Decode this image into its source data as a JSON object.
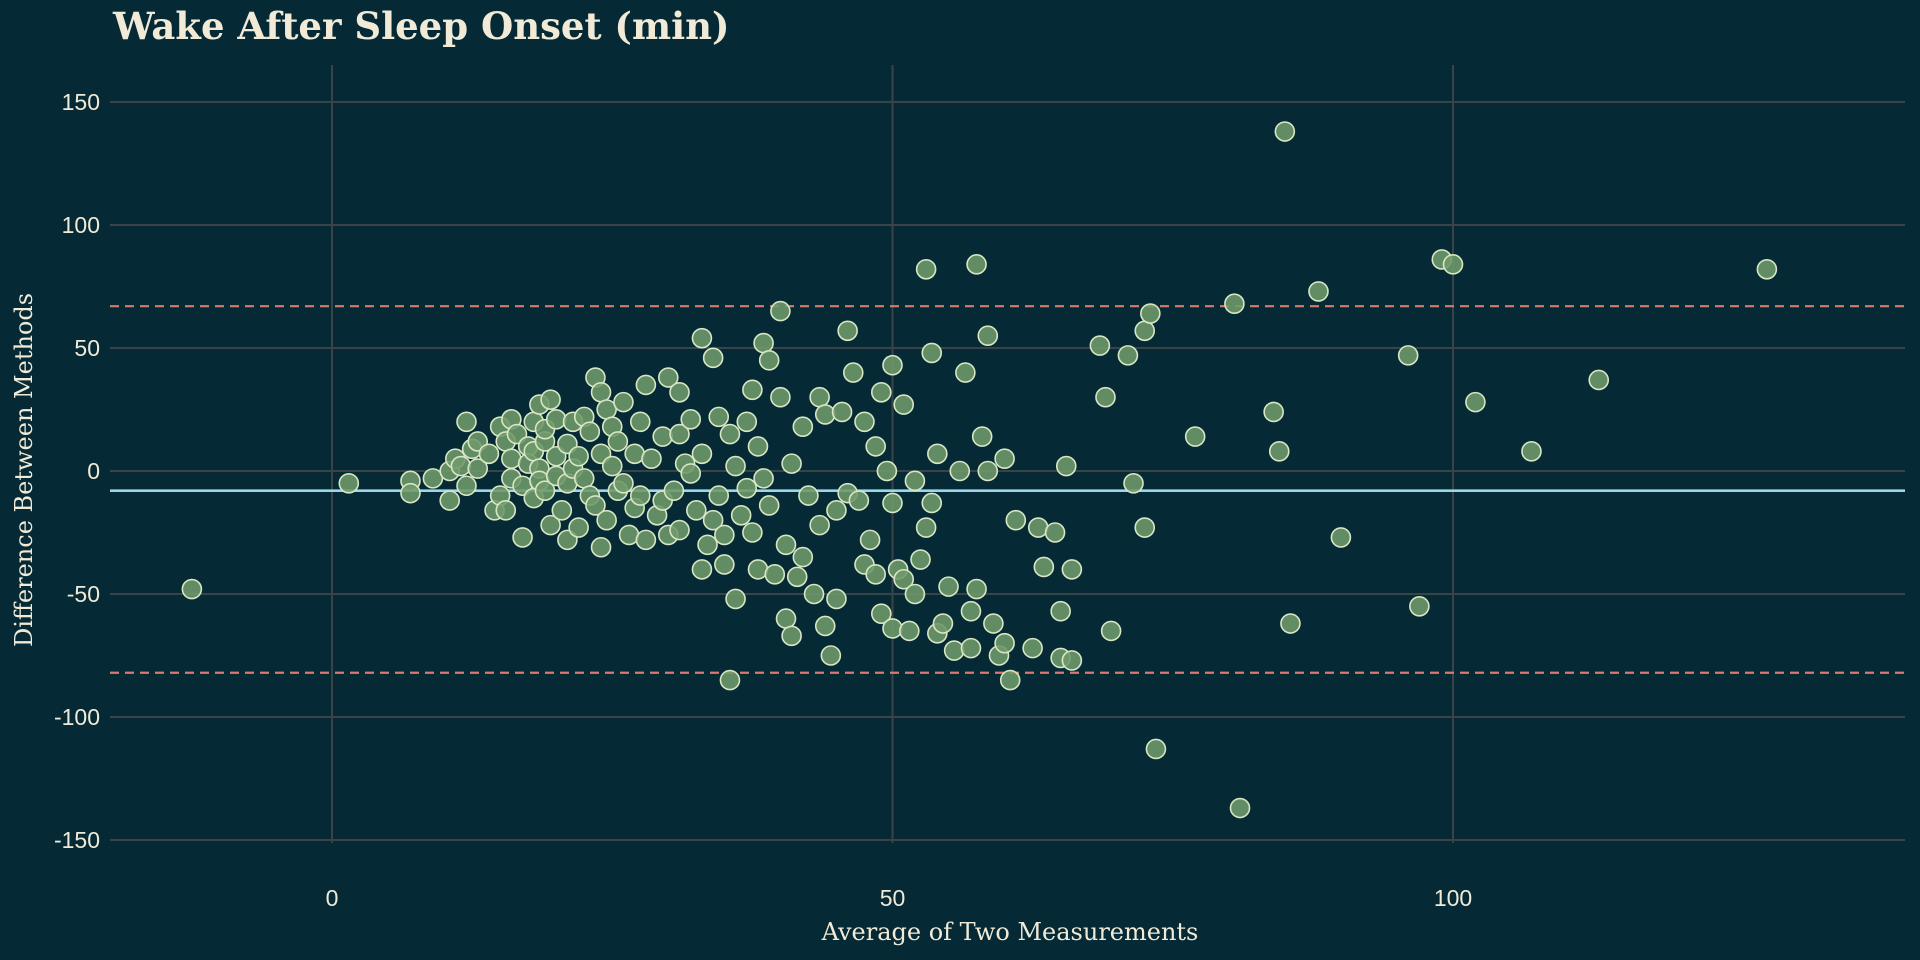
{
  "chart_data": {
    "type": "scatter",
    "title": "Wake After Sleep Onset (min)",
    "xlabel": "Average of Two Measurements",
    "ylabel": "Difference Between Methods",
    "xlim": [
      -20,
      140
    ],
    "ylim": [
      -170,
      165
    ],
    "xticks": [
      0,
      50,
      100
    ],
    "yticks": [
      150,
      100,
      50,
      0,
      -50,
      -100,
      -150
    ],
    "x_tick_labels": [
      "0",
      "50",
      "100"
    ],
    "y_tick_labels": [
      "150",
      "100",
      "50",
      "0",
      "-50",
      "-100",
      "-150"
    ],
    "grid": true,
    "reference_lines": {
      "mean": -8,
      "upper_loa": 67,
      "lower_loa": -82
    },
    "colors": {
      "background": "#052a35",
      "grid": "#3a4446",
      "point_fill": "#6f9a6a",
      "point_stroke": "#d7e6c4",
      "mean_line": "#9ed6e8",
      "loa_line": "#d97a6e",
      "text": "#f0ead8"
    },
    "points": [
      [
        -12.5,
        -48
      ],
      [
        1.5,
        -5
      ],
      [
        7,
        -4
      ],
      [
        7,
        -9
      ],
      [
        9,
        -3
      ],
      [
        10.5,
        -12
      ],
      [
        10.5,
        0
      ],
      [
        11,
        5
      ],
      [
        11.5,
        2
      ],
      [
        12,
        20
      ],
      [
        12,
        -6
      ],
      [
        12.5,
        9
      ],
      [
        13,
        12
      ],
      [
        13,
        1
      ],
      [
        14,
        7
      ],
      [
        14.5,
        -16
      ],
      [
        15,
        18
      ],
      [
        15,
        -10
      ],
      [
        15.5,
        12
      ],
      [
        15.5,
        -16
      ],
      [
        16,
        21
      ],
      [
        16,
        5
      ],
      [
        16,
        -3
      ],
      [
        16.5,
        15
      ],
      [
        17,
        -27
      ],
      [
        17,
        -6
      ],
      [
        17.5,
        10
      ],
      [
        17.5,
        3
      ],
      [
        18,
        20
      ],
      [
        18,
        8
      ],
      [
        18,
        -11
      ],
      [
        18.5,
        27
      ],
      [
        18.5,
        1
      ],
      [
        18.5,
        -4
      ],
      [
        19,
        12
      ],
      [
        19,
        17
      ],
      [
        19,
        -8
      ],
      [
        19.5,
        29
      ],
      [
        19.5,
        -22
      ],
      [
        20,
        6
      ],
      [
        20,
        -2
      ],
      [
        20,
        21
      ],
      [
        20.5,
        -16
      ],
      [
        21,
        11
      ],
      [
        21,
        -28
      ],
      [
        21,
        -5
      ],
      [
        21.5,
        20
      ],
      [
        21.5,
        1
      ],
      [
        22,
        6
      ],
      [
        22,
        -23
      ],
      [
        22.5,
        22
      ],
      [
        22.5,
        -3
      ],
      [
        23,
        16
      ],
      [
        23,
        -10
      ],
      [
        23.5,
        38
      ],
      [
        23.5,
        -14
      ],
      [
        24,
        32
      ],
      [
        24,
        7
      ],
      [
        24,
        -31
      ],
      [
        24.5,
        25
      ],
      [
        24.5,
        -20
      ],
      [
        25,
        18
      ],
      [
        25,
        2
      ],
      [
        25.5,
        12
      ],
      [
        25.5,
        -8
      ],
      [
        26,
        28
      ],
      [
        26,
        -5
      ],
      [
        26.5,
        -26
      ],
      [
        27,
        7
      ],
      [
        27,
        -15
      ],
      [
        27.5,
        20
      ],
      [
        27.5,
        -10
      ],
      [
        28,
        35
      ],
      [
        28,
        -28
      ],
      [
        28.5,
        5
      ],
      [
        29,
        -18
      ],
      [
        29.5,
        14
      ],
      [
        29.5,
        -12
      ],
      [
        30,
        38
      ],
      [
        30,
        -26
      ],
      [
        30.5,
        -8
      ],
      [
        31,
        32
      ],
      [
        31,
        15
      ],
      [
        31,
        -24
      ],
      [
        31.5,
        3
      ],
      [
        32,
        21
      ],
      [
        32,
        -1
      ],
      [
        32.5,
        -16
      ],
      [
        33,
        54
      ],
      [
        33,
        7
      ],
      [
        33,
        -40
      ],
      [
        33.5,
        -30
      ],
      [
        34,
        46
      ],
      [
        34,
        -20
      ],
      [
        34.5,
        22
      ],
      [
        34.5,
        -10
      ],
      [
        35,
        -26
      ],
      [
        35,
        -38
      ],
      [
        35.5,
        15
      ],
      [
        35.5,
        -85
      ],
      [
        36,
        2
      ],
      [
        36,
        -52
      ],
      [
        36.5,
        -18
      ],
      [
        37,
        20
      ],
      [
        37,
        -7
      ],
      [
        37.5,
        33
      ],
      [
        37.5,
        -25
      ],
      [
        38,
        10
      ],
      [
        38,
        -40
      ],
      [
        38.5,
        52
      ],
      [
        38.5,
        -3
      ],
      [
        39,
        45
      ],
      [
        39,
        -14
      ],
      [
        39.5,
        -42
      ],
      [
        40,
        65
      ],
      [
        40,
        30
      ],
      [
        40.5,
        -30
      ],
      [
        40.5,
        -60
      ],
      [
        41,
        -67
      ],
      [
        41,
        3
      ],
      [
        41.5,
        -43
      ],
      [
        42,
        18
      ],
      [
        42,
        -35
      ],
      [
        42.5,
        -10
      ],
      [
        43,
        -50
      ],
      [
        43.5,
        30
      ],
      [
        43.5,
        -22
      ],
      [
        44,
        -63
      ],
      [
        44,
        23
      ],
      [
        44.5,
        -75
      ],
      [
        45,
        -52
      ],
      [
        45,
        -16
      ],
      [
        45.5,
        24
      ],
      [
        46,
        57
      ],
      [
        46,
        -9
      ],
      [
        46.5,
        40
      ],
      [
        47,
        -12
      ],
      [
        47.5,
        -38
      ],
      [
        47.5,
        20
      ],
      [
        48,
        -28
      ],
      [
        48.5,
        10
      ],
      [
        48.5,
        -42
      ],
      [
        49,
        32
      ],
      [
        49,
        -58
      ],
      [
        49.5,
        0
      ],
      [
        50,
        43
      ],
      [
        50,
        -64
      ],
      [
        50,
        -13
      ],
      [
        50.5,
        -40
      ],
      [
        51,
        27
      ],
      [
        51,
        -44
      ],
      [
        51.5,
        -65
      ],
      [
        52,
        -4
      ],
      [
        52,
        -50
      ],
      [
        52.5,
        -36
      ],
      [
        53,
        82
      ],
      [
        53,
        -23
      ],
      [
        53.5,
        48
      ],
      [
        53.5,
        -13
      ],
      [
        54,
        -66
      ],
      [
        54,
        7
      ],
      [
        54.5,
        -62
      ],
      [
        55,
        -47
      ],
      [
        55.5,
        -73
      ],
      [
        56,
        0
      ],
      [
        56.5,
        40
      ],
      [
        57,
        -57
      ],
      [
        57,
        -72
      ],
      [
        57.5,
        84
      ],
      [
        57.5,
        -48
      ],
      [
        58,
        14
      ],
      [
        58.5,
        55
      ],
      [
        58.5,
        0
      ],
      [
        59,
        -62
      ],
      [
        59.5,
        -75
      ],
      [
        60,
        5
      ],
      [
        60,
        -70
      ],
      [
        60.5,
        -85
      ],
      [
        61,
        -20
      ],
      [
        62.5,
        -72
      ],
      [
        63,
        -23
      ],
      [
        63.5,
        -39
      ],
      [
        64.5,
        -25
      ],
      [
        65,
        -57
      ],
      [
        65,
        -76
      ],
      [
        65.5,
        2
      ],
      [
        66,
        -40
      ],
      [
        66,
        -77
      ],
      [
        68.5,
        51
      ],
      [
        69,
        30
      ],
      [
        69.5,
        -65
      ],
      [
        71,
        47
      ],
      [
        71.5,
        -5
      ],
      [
        72.5,
        57
      ],
      [
        72.5,
        -23
      ],
      [
        73,
        64
      ],
      [
        73.5,
        -113
      ],
      [
        77,
        14
      ],
      [
        80.5,
        68
      ],
      [
        81,
        -137
      ],
      [
        84,
        24
      ],
      [
        84.5,
        8
      ],
      [
        85,
        138
      ],
      [
        85.5,
        -62
      ],
      [
        88,
        73
      ],
      [
        90,
        -27
      ],
      [
        96,
        47
      ],
      [
        97,
        -55
      ],
      [
        99,
        86
      ],
      [
        100,
        84
      ],
      [
        102,
        28
      ],
      [
        107,
        8
      ],
      [
        113,
        37
      ],
      [
        128,
        82
      ]
    ]
  }
}
